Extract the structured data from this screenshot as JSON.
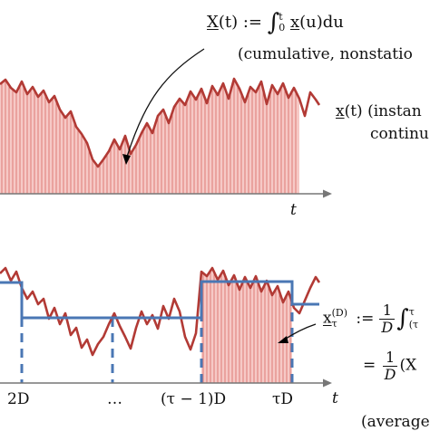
{
  "colors": {
    "signal": "#b23a35",
    "fill": "#f6c9c6",
    "hatch": "#d96a64",
    "average": "#4a77b4",
    "axis": "#777777"
  },
  "top": {
    "cumulative_def": "X(t) := ∫₀ᵗ x(u)du",
    "cumulative_def_parts": {
      "lhs": "X",
      "arg": "(t) := ",
      "integral": "∫",
      "lo": "0",
      "hi": "t",
      "body": "x",
      "body_arg": "(u)du"
    },
    "cumulative_note": "(cumulative, nonstatio",
    "inst_var": "x",
    "inst_label": "(t) (instan",
    "inst_label2": "continu",
    "axis_t": "t"
  },
  "bottom": {
    "avg_var": "x",
    "avg_sub": "τ",
    "avg_sup": "(D)",
    "avg_def": ":=",
    "frac_num": "1",
    "frac_den": "D",
    "lim_hi": "τ",
    "lim_lo": "(τ",
    "eq2": "=",
    "eq2_tail": "(X",
    "tick_labels": [
      "2D",
      "…",
      "(τ − 1)D",
      "τD"
    ],
    "axis_t": "t",
    "note": "(average"
  }
}
